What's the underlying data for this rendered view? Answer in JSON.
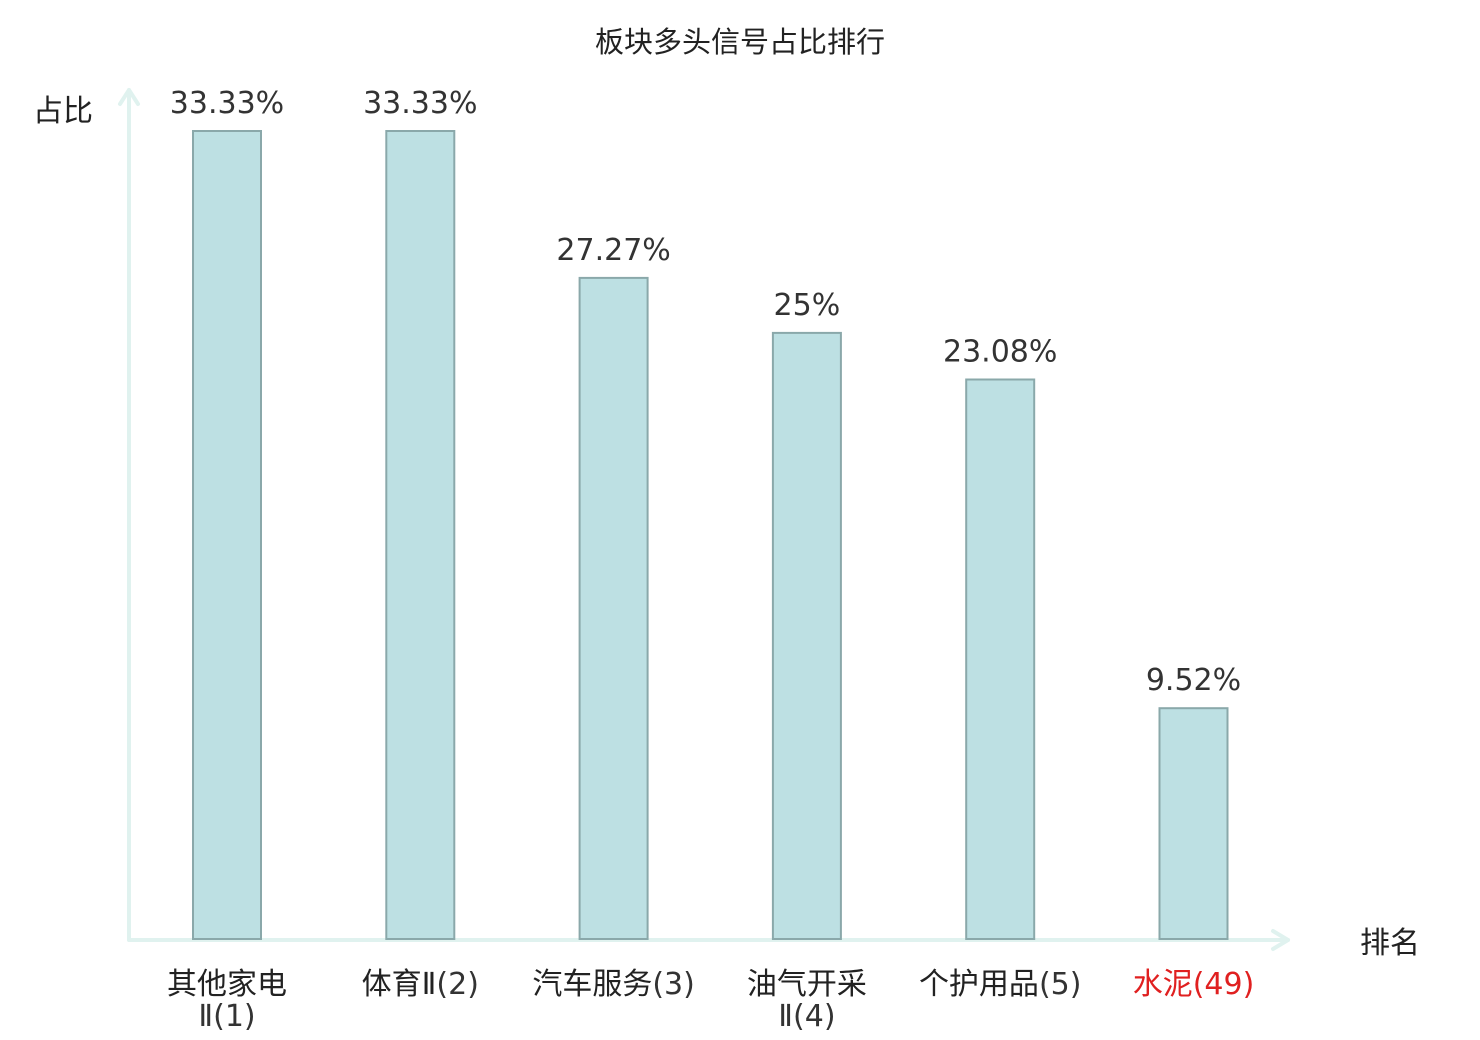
{
  "chart_data": {
    "type": "bar",
    "title": "板块多头信号占比排行",
    "ylabel": "占比",
    "xlabel": "排名",
    "ylim": [
      0,
      36.7
    ],
    "grid": false,
    "categories": [
      {
        "name": "其他家电Ⅱ",
        "rank": "(1)",
        "wrap": true,
        "highlight": false
      },
      {
        "name": "体育Ⅱ",
        "rank": "(2)",
        "wrap": false,
        "highlight": false
      },
      {
        "name": "汽车服务",
        "rank": "(3)",
        "wrap": false,
        "highlight": false
      },
      {
        "name": "油气开采Ⅱ",
        "rank": "(4)",
        "wrap": true,
        "highlight": false
      },
      {
        "name": "个护用品",
        "rank": "(5)",
        "wrap": false,
        "highlight": false
      },
      {
        "name": "水泥",
        "rank": "(49)",
        "wrap": false,
        "highlight": true
      }
    ],
    "values": [
      33.33,
      33.33,
      27.27,
      25,
      23.08,
      9.52
    ],
    "value_labels": [
      "33.33%",
      "33.33%",
      "27.27%",
      "25%",
      "23.08%",
      "9.52%"
    ]
  },
  "colors": {
    "bar_fill": "#bde0e3",
    "bar_stroke": "#8aa8aa",
    "axis": "#e0f2ef",
    "highlight": "#e02020"
  }
}
